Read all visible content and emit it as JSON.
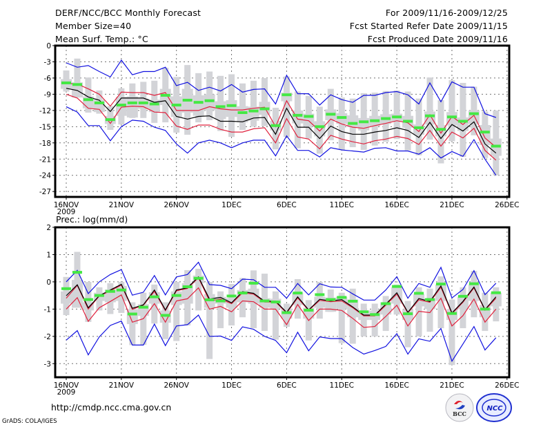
{
  "header": {
    "left": [
      "DERF/NCC/BCC Monthly Forecast",
      "Member Size=40",
      "Mean Surf. Temp.: °C"
    ],
    "right": [
      "For 2009/11/16-2009/12/25",
      "Fcst Started Refer Date 2009/11/15",
      "Fcst Produced Date 2009/11/16"
    ]
  },
  "footer": {
    "url": "http://cmdp.ncc.cma.gov.cn",
    "credit": "GrADS: COLA/IGES",
    "logos": [
      {
        "name": "bcc-logo",
        "text": "BCC"
      },
      {
        "name": "ncc-logo",
        "text": "NCC"
      }
    ]
  },
  "colors": {
    "mean": "#000000",
    "inner_band": "#e0203c",
    "outer_band": "#1010e0",
    "marker": "#44e844",
    "box": "#d3d4d8",
    "grid": "#707070"
  },
  "chart_data": [
    {
      "type": "line",
      "title": "Mean Surf. Temp.: °C",
      "xlabel": "",
      "ylabel": "",
      "x_start": "2009-11-16",
      "n_days": 40,
      "xticks": [
        "16NOV",
        "21NOV",
        "26NOV",
        "1DEC",
        "6DEC",
        "11DEC",
        "16DEC",
        "21DEC",
        "26DEC"
      ],
      "xtick_year": "2009",
      "yticks": [
        0,
        -3,
        -6,
        -9,
        -12,
        -15,
        -18,
        -21,
        -24,
        -27
      ],
      "ylim": [
        -28,
        0
      ],
      "grid": true,
      "series": [
        {
          "name": "ensemble-mean",
          "color": "#000000",
          "values": [
            -7.9,
            -8.3,
            -9.5,
            -10.1,
            -12.2,
            -9.7,
            -9.7,
            -9.7,
            -10.5,
            -10.2,
            -13.1,
            -13.6,
            -13.1,
            -13.0,
            -14.0,
            -14.0,
            -14.1,
            -13.4,
            -13.3,
            -16.4,
            -11.6,
            -15.1,
            -15.1,
            -17.2,
            -14.9,
            -15.9,
            -16.4,
            -16.4,
            -16.0,
            -15.7,
            -15.2,
            -15.7,
            -17.0,
            -14.2,
            -17.2,
            -14.6,
            -15.8,
            -14.1,
            -18.2,
            -19.9
          ]
        },
        {
          "name": "inner-upper",
          "color": "#e0203c",
          "values": [
            -7.0,
            -7.1,
            -8.0,
            -9.0,
            -11.2,
            -8.6,
            -8.7,
            -8.7,
            -9.2,
            -8.7,
            -12.0,
            -12.0,
            -12.0,
            -11.3,
            -11.7,
            -11.9,
            -11.9,
            -11.6,
            -11.4,
            -15.0,
            -10.2,
            -13.6,
            -13.9,
            -15.8,
            -13.6,
            -14.5,
            -15.1,
            -15.3,
            -14.8,
            -14.4,
            -13.9,
            -14.3,
            -15.9,
            -12.8,
            -16.2,
            -13.1,
            -14.6,
            -12.9,
            -17.1,
            -18.8
          ]
        },
        {
          "name": "inner-lower",
          "color": "#e0203c",
          "values": [
            -9.0,
            -9.7,
            -11.6,
            -11.8,
            -14.4,
            -11.4,
            -11.2,
            -11.3,
            -12.3,
            -12.4,
            -14.9,
            -15.5,
            -14.7,
            -14.7,
            -15.5,
            -16.0,
            -16.0,
            -15.4,
            -15.2,
            -18.0,
            -13.5,
            -16.9,
            -17.3,
            -19.1,
            -16.6,
            -17.3,
            -17.8,
            -18.2,
            -17.6,
            -17.3,
            -16.8,
            -17.2,
            -18.3,
            -15.7,
            -18.6,
            -16.0,
            -17.1,
            -15.3,
            -19.4,
            -21.2
          ]
        },
        {
          "name": "outer-upper",
          "color": "#1010e0",
          "values": [
            -3.2,
            -4.0,
            -3.7,
            -4.8,
            -5.8,
            -2.7,
            -5.4,
            -4.8,
            -4.8,
            -4.0,
            -7.4,
            -6.8,
            -8.3,
            -7.7,
            -8.4,
            -7.2,
            -8.6,
            -8.1,
            -8.0,
            -10.8,
            -5.5,
            -8.9,
            -8.9,
            -11.0,
            -9.1,
            -10.0,
            -10.5,
            -9.2,
            -9.2,
            -8.7,
            -8.5,
            -9.1,
            -10.8,
            -6.9,
            -10.4,
            -6.7,
            -7.7,
            -7.7,
            -12.6,
            -13.3
          ]
        },
        {
          "name": "outer-lower",
          "color": "#1010e0",
          "values": [
            -11.3,
            -12.3,
            -14.8,
            -14.8,
            -17.6,
            -15.0,
            -13.8,
            -14.0,
            -15.1,
            -15.7,
            -18.2,
            -19.9,
            -18.0,
            -17.5,
            -18.0,
            -18.9,
            -18.0,
            -17.5,
            -17.5,
            -20.4,
            -16.7,
            -19.4,
            -19.4,
            -20.6,
            -18.9,
            -19.3,
            -19.5,
            -19.7,
            -19.0,
            -18.9,
            -19.5,
            -19.5,
            -20.1,
            -18.9,
            -20.8,
            -19.6,
            -20.5,
            -17.4,
            -21.0,
            -24.0
          ]
        },
        {
          "name": "median-marker",
          "color": "#44e844",
          "values": [
            -6.9,
            -7.2,
            -10.0,
            -10.6,
            -13.7,
            -11.0,
            -10.6,
            -10.6,
            -10.8,
            -9.2,
            -11.0,
            -10.1,
            -10.5,
            -10.2,
            -11.3,
            -11.1,
            -12.4,
            -12.1,
            -11.7,
            -14.8,
            -9.1,
            -12.9,
            -13.1,
            -15.0,
            -12.7,
            -13.3,
            -14.4,
            -14.1,
            -13.9,
            -13.5,
            -13.2,
            -14.0,
            -15.2,
            -13.0,
            -15.5,
            -13.2,
            -14.0,
            -12.6,
            -16.0,
            -18.6
          ]
        },
        {
          "name": "box-max",
          "values": [
            -4.6,
            -2.4,
            -5.9,
            -8.3,
            -11.2,
            -7.9,
            -7.0,
            -6.7,
            -6.5,
            -4.1,
            -5.8,
            -3.6,
            -5.1,
            -4.8,
            -5.6,
            -5.3,
            -7.0,
            -6.5,
            -6.0,
            -11.5,
            -5.7,
            -8.5,
            -9.3,
            -11.3,
            -8.0,
            -9.6,
            -9.8,
            -8.8,
            -8.7,
            -8.4,
            -8.3,
            -8.5,
            -9.8,
            -5.9,
            -10.1,
            -6.4,
            -6.9,
            -7.6,
            -12.2,
            -12.0
          ]
        },
        {
          "name": "box-q3",
          "values": [
            -6.2,
            -6.8,
            -9.4,
            -10.0,
            -13.0,
            -9.5,
            -9.4,
            -9.8,
            -10.0,
            -8.0,
            -9.4,
            -8.0,
            -9.2,
            -9.0,
            -10.3,
            -10.1,
            -11.2,
            -11.3,
            -10.4,
            -13.9,
            -8.7,
            -12.0,
            -12.6,
            -14.0,
            -11.8,
            -12.5,
            -12.9,
            -13.4,
            -13.0,
            -12.7,
            -12.6,
            -13.0,
            -14.6,
            -12.2,
            -14.7,
            -12.3,
            -13.3,
            -12.0,
            -14.7,
            -17.2
          ]
        },
        {
          "name": "box-q1",
          "values": [
            -8.0,
            -9.6,
            -11.6,
            -12.3,
            -14.5,
            -13.0,
            -13.3,
            -11.7,
            -12.3,
            -11.0,
            -13.2,
            -12.4,
            -13.0,
            -12.0,
            -13.6,
            -13.2,
            -14.2,
            -13.9,
            -12.8,
            -15.7,
            -10.3,
            -14.4,
            -15.0,
            -16.8,
            -13.8,
            -14.5,
            -15.1,
            -15.7,
            -14.9,
            -14.5,
            -14.0,
            -15.2,
            -16.5,
            -14.6,
            -16.8,
            -14.8,
            -15.8,
            -14.5,
            -18.4,
            -20.4
          ]
        },
        {
          "name": "box-min",
          "values": [
            -8.5,
            -9.6,
            -12.4,
            -12.6,
            -15.6,
            -14.6,
            -13.4,
            -13.4,
            -14.3,
            -14.2,
            -16.1,
            -16.5,
            -14.2,
            -13.8,
            -15.8,
            -16.9,
            -15.6,
            -15.0,
            -14.9,
            -19.2,
            -16.9,
            -19.0,
            -17.2,
            -20.0,
            -17.5,
            -19.3,
            -18.8,
            -19.3,
            -18.5,
            -17.8,
            -17.3,
            -19.4,
            -20.3,
            -17.4,
            -21.8,
            -17.7,
            -20.6,
            -16.6,
            -20.8,
            -24.0
          ]
        }
      ]
    },
    {
      "type": "line",
      "title": "Prec.: log(mm/d)",
      "xlabel": "",
      "ylabel": "",
      "x_start": "2009-11-16",
      "n_days": 40,
      "xticks": [
        "16NOV",
        "21NOV",
        "26NOV",
        "1DEC",
        "6DEC",
        "11DEC",
        "16DEC",
        "21DEC",
        "26DEC"
      ],
      "xtick_year": "2009",
      "yticks": [
        2,
        1,
        0,
        -1,
        -2,
        -3
      ],
      "ylim": [
        -3.5,
        2
      ],
      "grid": true,
      "series": [
        {
          "name": "ensemble-mean",
          "color": "#000000",
          "values": [
            -0.51,
            -0.11,
            -0.95,
            -0.51,
            -0.3,
            -0.09,
            -0.97,
            -0.84,
            -0.3,
            -1.03,
            -0.3,
            -0.22,
            0.18,
            -0.63,
            -0.57,
            -0.77,
            -0.36,
            -0.42,
            -0.71,
            -0.71,
            -1.12,
            -0.55,
            -1.03,
            -0.64,
            -0.7,
            -0.65,
            -0.92,
            -1.22,
            -1.22,
            -0.82,
            -0.4,
            -1.12,
            -0.61,
            -0.72,
            -0.15,
            -1.14,
            -0.72,
            -0.19,
            -1.02,
            -0.55
          ]
        },
        {
          "name": "inner-upper",
          "color": "#e0203c",
          "values": [
            -0.6,
            -0.13,
            -1.0,
            -0.52,
            -0.33,
            -0.12,
            -1.01,
            -0.86,
            -0.35,
            -1.06,
            -0.33,
            -0.24,
            0.15,
            -0.7,
            -0.63,
            -0.8,
            -0.4,
            -0.45,
            -0.74,
            -0.74,
            -1.14,
            -0.59,
            -1.05,
            -0.68,
            -0.73,
            -0.7,
            -0.95,
            -1.25,
            -1.25,
            -0.86,
            -0.45,
            -1.14,
            -0.66,
            -0.75,
            -0.2,
            -1.17,
            -0.75,
            -0.22,
            -1.04,
            -0.6
          ]
        },
        {
          "name": "inner-lower",
          "color": "#e0203c",
          "values": [
            -1.0,
            -0.58,
            -1.45,
            -0.95,
            -0.72,
            -0.48,
            -1.48,
            -1.35,
            -0.8,
            -1.48,
            -0.7,
            -0.62,
            -0.22,
            -1.0,
            -0.9,
            -1.1,
            -0.7,
            -0.73,
            -1.0,
            -1.0,
            -1.57,
            -0.83,
            -1.42,
            -1.0,
            -1.0,
            -1.05,
            -1.34,
            -1.67,
            -1.64,
            -1.27,
            -0.86,
            -1.62,
            -1.08,
            -1.13,
            -0.6,
            -1.62,
            -1.24,
            -0.63,
            -1.48,
            -1.0
          ]
        },
        {
          "name": "outer-upper",
          "color": "#1010e0",
          "values": [
            0.0,
            0.42,
            -0.43,
            0.0,
            0.27,
            0.45,
            -0.49,
            -0.38,
            0.23,
            -0.48,
            0.18,
            0.27,
            0.72,
            -0.1,
            -0.13,
            -0.25,
            0.1,
            0.08,
            -0.2,
            -0.2,
            -0.6,
            -0.06,
            -0.48,
            -0.07,
            -0.19,
            -0.2,
            -0.44,
            -0.67,
            -0.67,
            -0.3,
            0.19,
            -0.6,
            -0.06,
            -0.2,
            0.53,
            -0.59,
            -0.28,
            0.41,
            -0.47,
            -0.05
          ]
        },
        {
          "name": "outer-lower",
          "color": "#1010e0",
          "values": [
            -2.14,
            -1.79,
            -2.68,
            -2.02,
            -1.6,
            -1.44,
            -2.32,
            -2.32,
            -1.55,
            -2.34,
            -1.62,
            -1.57,
            -1.22,
            -2.0,
            -1.99,
            -2.15,
            -1.65,
            -1.74,
            -2.0,
            -2.15,
            -2.6,
            -1.85,
            -2.53,
            -2.02,
            -2.08,
            -2.08,
            -2.41,
            -2.65,
            -2.52,
            -2.37,
            -1.9,
            -2.65,
            -2.09,
            -2.18,
            -1.71,
            -2.91,
            -2.28,
            -1.64,
            -2.5,
            -2.05
          ]
        },
        {
          "name": "median-marker",
          "color": "#44e844",
          "values": [
            -0.25,
            0.35,
            -0.65,
            -0.5,
            -0.35,
            -0.3,
            -1.18,
            -0.93,
            -0.55,
            -1.23,
            -0.5,
            -0.18,
            0.13,
            -0.66,
            -0.7,
            -0.52,
            -0.41,
            -0.05,
            -0.7,
            -0.74,
            -1.13,
            -0.41,
            -1.04,
            -0.47,
            -0.65,
            -0.57,
            -0.71,
            -1.1,
            -1.2,
            -0.8,
            -0.17,
            -1.17,
            -0.42,
            -0.65,
            -0.08,
            -1.16,
            -0.53,
            -0.07,
            -1.0,
            -0.4
          ]
        },
        {
          "name": "box-max",
          "values": [
            0.18,
            1.1,
            0.0,
            -0.2,
            -0.05,
            0.0,
            -0.75,
            -0.4,
            -0.1,
            -0.75,
            0.0,
            0.43,
            0.48,
            0.0,
            -0.35,
            -0.08,
            0.14,
            0.42,
            0.3,
            -0.35,
            -0.8,
            0.1,
            -0.67,
            0.0,
            -0.28,
            -0.4,
            -0.25,
            -0.8,
            -0.8,
            -0.52,
            -0.1,
            -0.7,
            -0.2,
            -0.25,
            0.2,
            -0.65,
            -0.2,
            0.4,
            -0.4,
            -0.2
          ]
        },
        {
          "name": "box-q3",
          "values": [
            -0.35,
            0.07,
            -0.75,
            -0.4,
            -0.28,
            -0.15,
            -1.0,
            -0.82,
            -0.38,
            -1.05,
            -0.35,
            -0.05,
            0.23,
            -0.45,
            -0.55,
            -0.6,
            -0.3,
            -0.25,
            -0.6,
            -0.62,
            -0.98,
            -0.4,
            -0.95,
            -0.55,
            -0.58,
            -0.55,
            -0.65,
            -1.05,
            -1.05,
            -0.75,
            -0.2,
            -1.0,
            -0.45,
            -0.6,
            -0.1,
            -1.0,
            -0.55,
            -0.1,
            -0.85,
            -0.4
          ]
        },
        {
          "name": "box-q1",
          "values": [
            -0.8,
            -0.95,
            -1.05,
            -0.7,
            -0.75,
            -0.7,
            -1.55,
            -1.25,
            -0.8,
            -1.5,
            -0.85,
            -0.8,
            -0.05,
            -0.95,
            -0.8,
            -0.95,
            -0.75,
            -0.8,
            -0.95,
            -0.98,
            -1.35,
            -0.85,
            -1.35,
            -0.95,
            -1.1,
            -1.0,
            -1.3,
            -1.4,
            -1.4,
            -1.2,
            -0.8,
            -1.4,
            -0.9,
            -1.0,
            -0.7,
            -1.4,
            -1.0,
            -0.7,
            -1.3,
            -0.9
          ]
        },
        {
          "name": "box-min",
          "values": [
            -1.22,
            -0.93,
            -1.47,
            -1.05,
            -1.18,
            -1.14,
            -2.32,
            -2.31,
            -1.53,
            -2.1,
            -2.17,
            -1.6,
            -1.05,
            -2.83,
            -1.7,
            -1.6,
            -1.3,
            -1.7,
            -1.8,
            -2.12,
            -1.65,
            -1.35,
            -2.15,
            -1.35,
            -1.1,
            -2.25,
            -2.27,
            -2.0,
            -2.0,
            -1.8,
            -1.2,
            -2.4,
            -2.0,
            -1.83,
            -1.7,
            -3.05,
            -1.7,
            -1.3,
            -1.8,
            -1.45
          ]
        }
      ]
    }
  ]
}
